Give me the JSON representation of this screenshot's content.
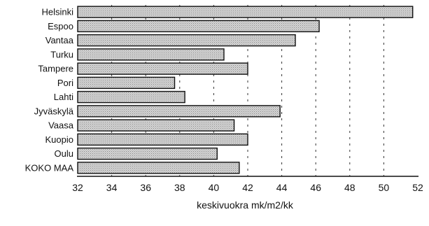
{
  "chart_data": {
    "type": "bar",
    "orientation": "horizontal",
    "categories": [
      "Helsinki",
      "Espoo",
      "Vantaa",
      "Turku",
      "Tampere",
      "Pori",
      "Lahti",
      "Jyväskylä",
      "Vaasa",
      "Kuopio",
      "Oulu",
      "KOKO MAA"
    ],
    "values": [
      51.7,
      46.2,
      44.8,
      40.6,
      42.0,
      37.7,
      38.3,
      43.9,
      41.2,
      42.0,
      40.2,
      41.5
    ],
    "xlim": [
      32,
      52
    ],
    "xticks": [
      "32",
      "34",
      "36",
      "38",
      "40",
      "42",
      "44",
      "46",
      "48",
      "50",
      "52"
    ],
    "xlabel": "keskivuokra mk/m2/kk",
    "ylabel": "",
    "title": "",
    "grid": "vertical dashed",
    "bar_color": "#c8c8c8",
    "bar_edge_color": "#111111"
  }
}
